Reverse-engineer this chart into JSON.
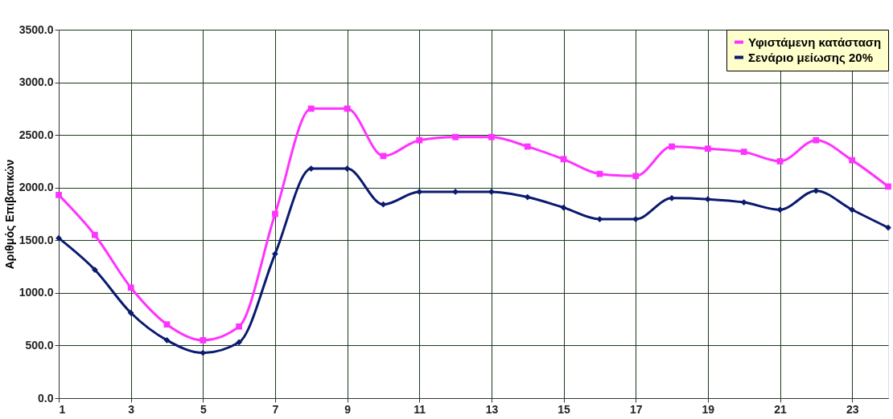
{
  "chart_data": {
    "type": "line",
    "ylabel": "Αριθμός Επιβατικών",
    "x": [
      1,
      2,
      3,
      4,
      5,
      6,
      7,
      8,
      9,
      10,
      11,
      12,
      13,
      14,
      15,
      16,
      17,
      18,
      19,
      20,
      21,
      22,
      23,
      24
    ],
    "series": [
      {
        "name": "Υφιστάμενη κατάσταση",
        "color": "#ff33ff",
        "marker": "square",
        "values": [
          1930,
          1550,
          1050,
          700,
          550,
          680,
          1750,
          2750,
          2750,
          2300,
          2450,
          2480,
          2480,
          2390,
          2270,
          2130,
          2110,
          2390,
          2370,
          2340,
          2250,
          2450,
          2260,
          2010
        ]
      },
      {
        "name": "Σενάριο μείωσης 20%",
        "color": "#0a1a6e",
        "marker": "diamond",
        "values": [
          1520,
          1220,
          810,
          550,
          430,
          530,
          1370,
          2180,
          2180,
          1840,
          1960,
          1960,
          1960,
          1910,
          1810,
          1700,
          1700,
          1900,
          1890,
          1860,
          1790,
          1970,
          1790,
          1620
        ]
      }
    ],
    "xlim": [
      1,
      24
    ],
    "xticks": [
      1,
      3,
      5,
      7,
      9,
      11,
      13,
      15,
      17,
      19,
      21,
      23
    ],
    "ylim": [
      0,
      3500
    ],
    "yticks": [
      {
        "value": 0,
        "label": "0.0"
      },
      {
        "value": 500,
        "label": "500.0"
      },
      {
        "value": 1000,
        "label": "1000.0"
      },
      {
        "value": 1500,
        "label": "1500.0"
      },
      {
        "value": 2000,
        "label": "2000.0"
      },
      {
        "value": 2500,
        "label": "2500.0"
      },
      {
        "value": 3000,
        "label": "3000.0"
      },
      {
        "value": 3500,
        "label": "3500.0"
      }
    ],
    "grid": true,
    "legend": "top right",
    "line_style": "solid"
  }
}
